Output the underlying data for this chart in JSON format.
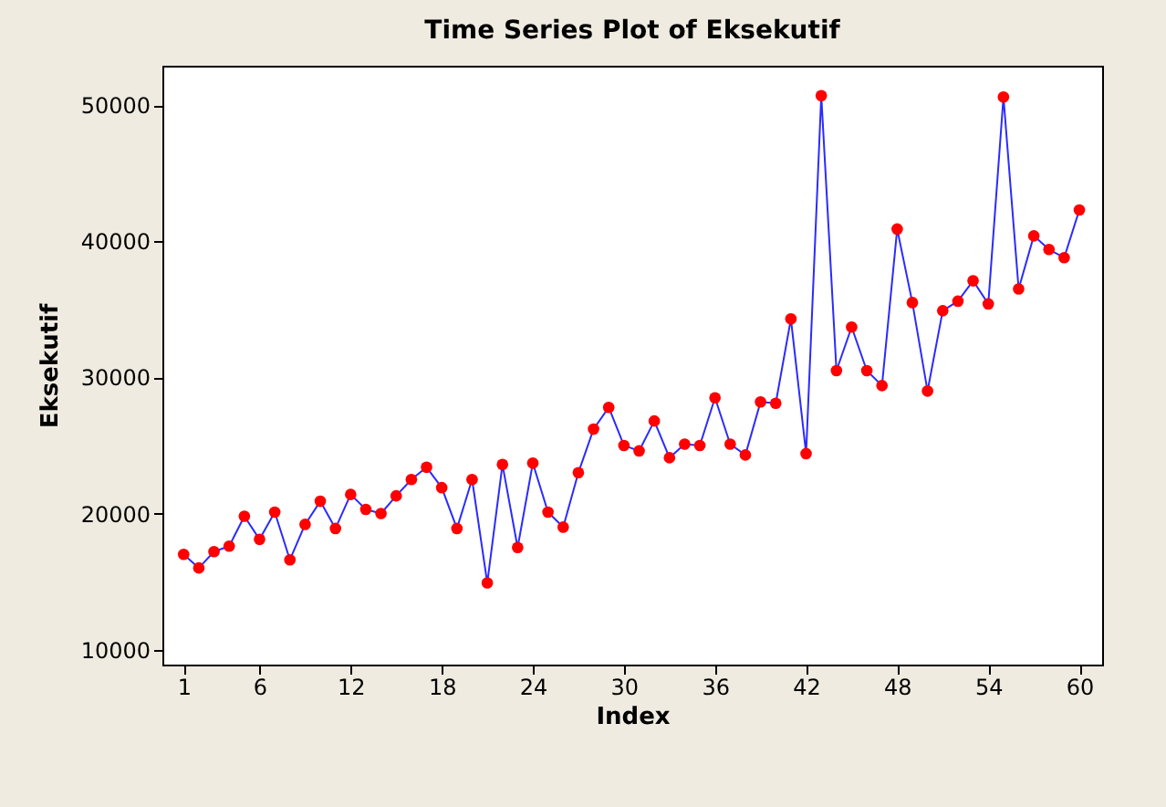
{
  "chart_data": {
    "type": "line",
    "title": "Time Series Plot of Eksekutif",
    "xlabel": "Index",
    "ylabel": "Eksekutif",
    "x": [
      1,
      2,
      3,
      4,
      5,
      6,
      7,
      8,
      9,
      10,
      11,
      12,
      13,
      14,
      15,
      16,
      17,
      18,
      19,
      20,
      21,
      22,
      23,
      24,
      25,
      26,
      27,
      28,
      29,
      30,
      31,
      32,
      33,
      34,
      35,
      36,
      37,
      38,
      39,
      40,
      41,
      42,
      43,
      44,
      45,
      46,
      47,
      48,
      49,
      50,
      51,
      52,
      53,
      54,
      55,
      56,
      57,
      58,
      59,
      60
    ],
    "series": [
      {
        "color": "#2b2bff",
        "values": [
          17000,
          16000,
          17200,
          17600,
          19800,
          18100,
          20100,
          16600,
          19200,
          20900,
          18900,
          21400,
          20300,
          20000,
          21300,
          22500,
          23400,
          21900,
          18900,
          22500,
          14900,
          23600,
          17500,
          23700,
          20100,
          19000,
          23000,
          26200,
          27800,
          25000,
          24600,
          26800,
          24100,
          25100,
          25000,
          28500,
          25100,
          24300,
          28200,
          28100,
          34300,
          24400,
          50700,
          30500,
          33700,
          30500,
          29400,
          40900,
          35500,
          29000,
          34900,
          35600,
          37100,
          35400,
          50600,
          36500,
          40400,
          39400,
          38800,
          42300
        ]
      }
    ],
    "marker": "circle",
    "line_style": "solid",
    "xlim": [
      -0.4,
      61.5
    ],
    "ylim": [
      8900,
      52900
    ],
    "xticks": [
      1,
      6,
      12,
      18,
      24,
      30,
      36,
      42,
      48,
      54,
      60
    ],
    "yticks": [
      10000,
      20000,
      30000,
      40000,
      50000
    ],
    "grid": false
  }
}
